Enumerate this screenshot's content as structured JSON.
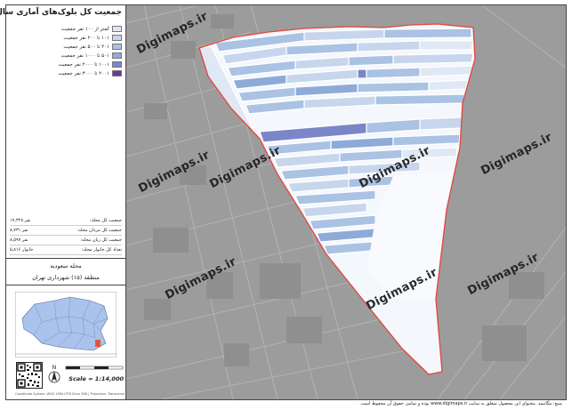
{
  "legend": {
    "title": "جمعیت کل بلوک‌های آماری سال ۱۳۹۵",
    "classes": [
      {
        "label": "کمتر از ۱۰۰ نفر جمعیت",
        "color": "#dfe8f4"
      },
      {
        "label": "۱۰۱ تا ۲۰۰ نفر جمعیت",
        "color": "#c7d6ec"
      },
      {
        "label": "۲۰۱ تا ۵۰۰ نفر جمعیت",
        "color": "#aac2e3"
      },
      {
        "label": "۵۰۱ تا ۱۰۰۰ نفر جمعیت",
        "color": "#8eabd7"
      },
      {
        "label": "۱۰۰۱ تا ۲۰۰۰ نفر جمعیت",
        "color": "#7b86c8"
      },
      {
        "label": "۲۰۰۱ تا ۳۰۰۰ نفر جمعیت",
        "color": "#6a3a96"
      }
    ]
  },
  "stats": [
    {
      "label": "جمعیت کل محله:",
      "value": "۱۷,۳۲۸ نفر"
    },
    {
      "label": "جمعیت کل مردان محله:",
      "value": "۸,۷۳۱ نفر"
    },
    {
      "label": "جمعیت کل زنان محله:",
      "value": "۸,۵۹۷ نفر"
    },
    {
      "label": "تعداد کل خانوار محله:",
      "value": "۵,۸۱۶ خانوار"
    }
  ],
  "area": {
    "neighborhood": "محله سعودیه",
    "district": "منطقه (۱۵) شهرداری تهران"
  },
  "scale": {
    "text": "Scale = 1:14,000"
  },
  "crs": "Coordinate System: WGS 1984 UTM Zone 39N | Projection: Transverse Mercator",
  "watermark": "Digimaps.ir",
  "footer": "منبع: مگاتیمد. محتوای این محصول متعلق به سایت www.digimaps.ir بوده و تمامی حقوق آن محفوظ است."
}
